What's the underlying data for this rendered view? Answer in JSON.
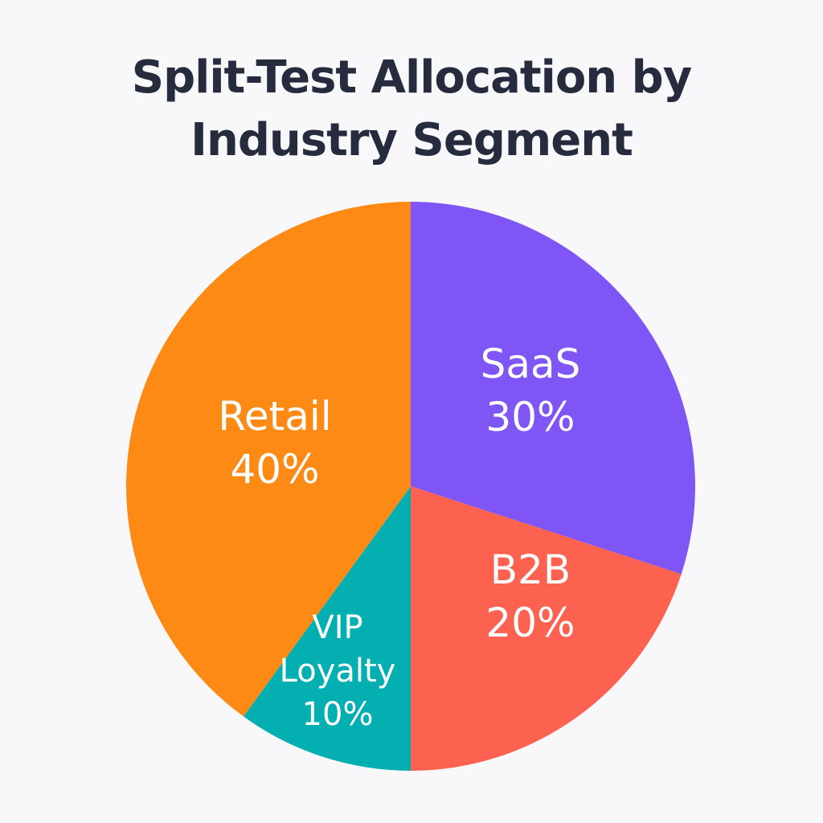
{
  "chart_data": {
    "type": "pie",
    "title": [
      "Split-Test Allocation by",
      "Industry Segment"
    ],
    "slices": [
      {
        "label_lines": [
          "SaaS"
        ],
        "value_label": "30%",
        "value": 30,
        "color": "#7f56f5"
      },
      {
        "label_lines": [
          "B2B"
        ],
        "value_label": "20%",
        "value": 20,
        "color": "#fd614f"
      },
      {
        "label_lines": [
          "VIP",
          "Loyalty"
        ],
        "value_label": "10%",
        "value": 10,
        "color": "#03afb0"
      },
      {
        "label_lines": [
          "Retail"
        ],
        "value_label": "40%",
        "value": 40,
        "color": "#fd8a15"
      }
    ],
    "start_angle": "12 o'clock",
    "direction": "clockwise",
    "legend": "none"
  }
}
